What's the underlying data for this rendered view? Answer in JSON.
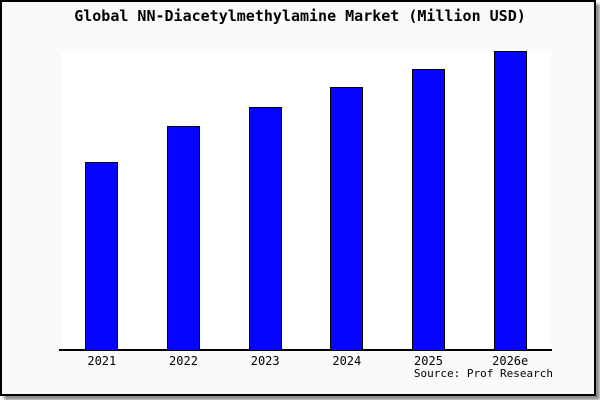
{
  "window": {
    "background": "#fafafa",
    "frame_border_color": "#000000"
  },
  "chart_data": {
    "type": "bar",
    "title": "Global NN-Diacetylmethylamine Market (Million USD)",
    "categories": [
      "2021",
      "2022",
      "2023",
      "2024",
      "2025",
      "2026e"
    ],
    "values": [
      63,
      75,
      81.5,
      88,
      94,
      100
    ],
    "value_note": "no y-axis ticks or value labels shown; values are relative bar heights normalized to 2026e = 100",
    "xlabel": "",
    "ylabel": "",
    "ylim": [
      0,
      100
    ],
    "grid": false,
    "legend": false,
    "bar_color": "#0404ff",
    "bar_border_color": "#000000",
    "plot_background": "#ffffff"
  },
  "source": {
    "text": "Source: Prof Research"
  }
}
